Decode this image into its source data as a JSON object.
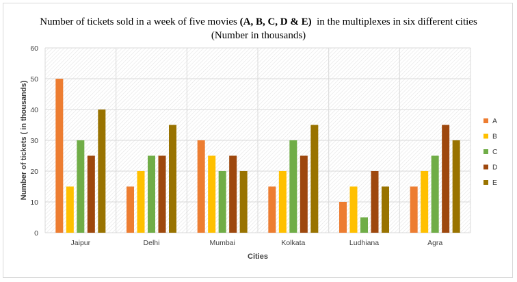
{
  "chart_data": {
    "type": "bar",
    "title_line1": {
      "before": "Number of tickets sold in a week of five movies ",
      "bold": "(A, B, C, D & E)",
      "after": "  in the multiplexes in six different cities"
    },
    "title_line2": "(Number in thousands)",
    "xlabel": "Cities",
    "ylabel": "Number of tickets ( in thousands)",
    "ylim": [
      0,
      60
    ],
    "yticks": [
      0,
      10,
      20,
      30,
      40,
      50,
      60
    ],
    "categories": [
      "Jaipur",
      "Delhi",
      "Mumbai",
      "Kolkata",
      "Ludhiana",
      "Agra"
    ],
    "series": [
      {
        "name": "A",
        "color": "#ED7D31",
        "values": [
          50,
          15,
          30,
          15,
          10,
          15
        ]
      },
      {
        "name": "B",
        "color": "#FFC000",
        "values": [
          15,
          20,
          25,
          20,
          15,
          20
        ]
      },
      {
        "name": "C",
        "color": "#70AD47",
        "values": [
          30,
          25,
          20,
          30,
          5,
          25
        ]
      },
      {
        "name": "D",
        "color": "#9E480E",
        "values": [
          25,
          25,
          25,
          25,
          20,
          35
        ]
      },
      {
        "name": "E",
        "color": "#997300",
        "values": [
          40,
          35,
          20,
          35,
          15,
          30
        ]
      }
    ],
    "grid": true,
    "legend": "right"
  }
}
